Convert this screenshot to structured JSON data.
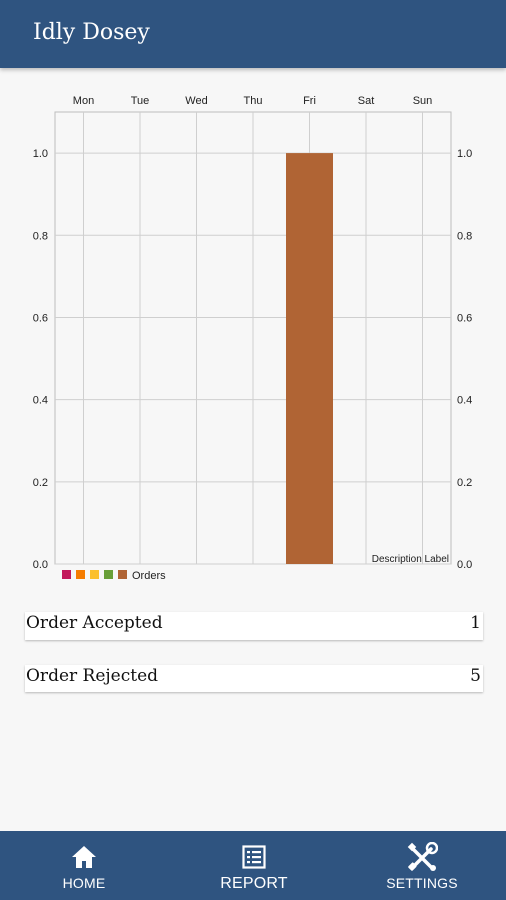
{
  "app": {
    "title": "Idly Dosey"
  },
  "chart_data": {
    "type": "bar",
    "categories": [
      "Mon",
      "Tue",
      "Wed",
      "Thu",
      "Fri",
      "Sat",
      "Sun"
    ],
    "series": [
      {
        "name": "Orders",
        "values": [
          0,
          0,
          0,
          0,
          1,
          0,
          0
        ]
      }
    ],
    "y_ticks": [
      "0.0",
      "0.2",
      "0.4",
      "0.6",
      "0.8",
      "1.0"
    ],
    "ylim": [
      0,
      1.1
    ],
    "description": "Description Label",
    "legend": {
      "placement": "bottom-left",
      "swatch_colors": [
        "#c2185b",
        "#f57c00",
        "#fbc02d",
        "#689f38",
        "#b06434"
      ],
      "label": "Orders"
    },
    "bar_color": "#b06434",
    "grid": true
  },
  "stats": [
    {
      "label": "Order Accepted",
      "value": "1"
    },
    {
      "label": "Order Rejected",
      "value": "5"
    }
  ],
  "nav": {
    "home": {
      "label": "HOME",
      "icon": "home-icon"
    },
    "report": {
      "label": "REPORT",
      "icon": "report-icon"
    },
    "settings": {
      "label": "SETTINGS",
      "icon": "tools-icon"
    }
  }
}
